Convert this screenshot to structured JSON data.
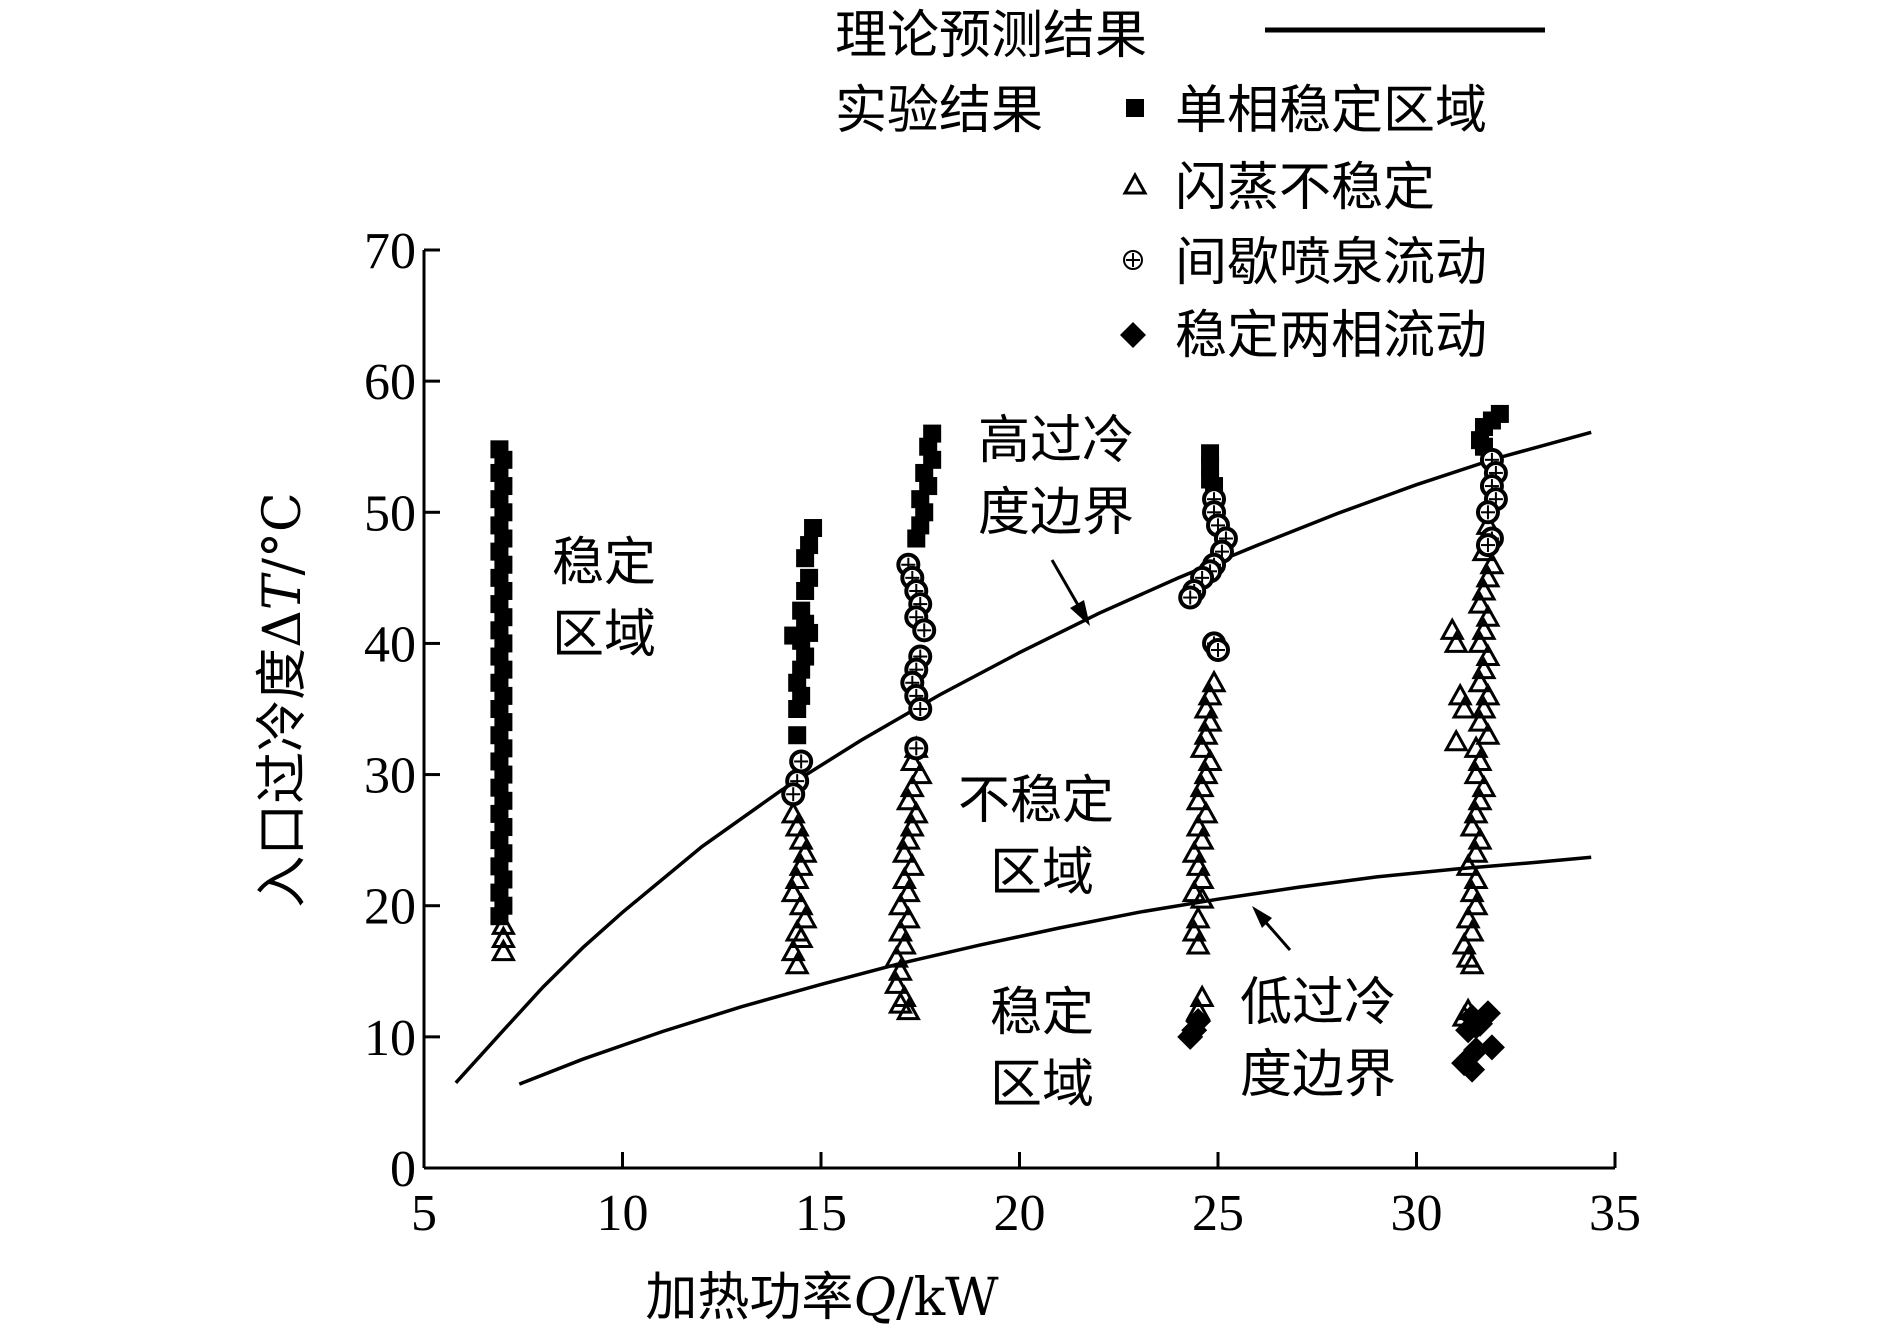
{
  "chart_data": {
    "type": "scatter",
    "xlabel": {
      "prefix": "加热功率",
      "var": "Q",
      "suffix": "/kW"
    },
    "ylabel": {
      "prefix": "入口过冷度Δ",
      "var": "T",
      "suffix": "/°C"
    },
    "xlim": [
      5,
      35
    ],
    "ylim": [
      0,
      70
    ],
    "x_ticks": [
      "5",
      "10",
      "15",
      "20",
      "25",
      "30",
      "35"
    ],
    "y_ticks": [
      "0",
      "10",
      "20",
      "30",
      "40",
      "50",
      "60",
      "70"
    ],
    "grid": false,
    "legend": {
      "placement": "top-right",
      "theory_label": "理论预测结果",
      "experiment_label": "实验结果",
      "items": [
        {
          "marker": "square",
          "label": "单相稳定区域"
        },
        {
          "marker": "triangle",
          "label": "闪蒸不稳定"
        },
        {
          "marker": "circle-plus",
          "label": "间歇喷泉流动"
        },
        {
          "marker": "diamond",
          "label": "稳定两相流动"
        }
      ]
    },
    "annotations": {
      "stable_upper": [
        "稳定",
        "区域"
      ],
      "high_boundary": [
        "高过冷",
        "度边界"
      ],
      "unstable": [
        "不稳定",
        "区域"
      ],
      "stable_lower": [
        "稳定",
        "区域"
      ],
      "low_boundary": [
        "低过冷",
        "度边界"
      ]
    },
    "series": [
      {
        "name": "high-boundary",
        "kind": "line",
        "points": [
          [
            5.8,
            6.5
          ],
          [
            7.0,
            10.5
          ],
          [
            8.0,
            13.8
          ],
          [
            9.0,
            16.8
          ],
          [
            10.0,
            19.5
          ],
          [
            12.0,
            24.5
          ],
          [
            14.0,
            28.8
          ],
          [
            16.0,
            32.6
          ],
          [
            18.0,
            36.1
          ],
          [
            20.0,
            39.3
          ],
          [
            22.0,
            42.3
          ],
          [
            24.0,
            45.0
          ],
          [
            26.0,
            47.5
          ],
          [
            28.0,
            49.9
          ],
          [
            30.0,
            52.1
          ],
          [
            32.0,
            54.1
          ],
          [
            34.4,
            56.1
          ]
        ]
      },
      {
        "name": "low-boundary",
        "kind": "line",
        "points": [
          [
            7.4,
            6.4
          ],
          [
            9.0,
            8.3
          ],
          [
            11.0,
            10.4
          ],
          [
            13.0,
            12.3
          ],
          [
            15.0,
            14.0
          ],
          [
            17.0,
            15.6
          ],
          [
            19.0,
            17.0
          ],
          [
            21.0,
            18.3
          ],
          [
            23.0,
            19.5
          ],
          [
            25.0,
            20.5
          ],
          [
            27.0,
            21.4
          ],
          [
            29.0,
            22.2
          ],
          [
            31.0,
            22.8
          ],
          [
            33.0,
            23.3
          ],
          [
            34.4,
            23.7
          ]
        ]
      },
      {
        "name": "单相稳定区域",
        "marker": "square",
        "points": [
          [
            6.9,
            54.8
          ],
          [
            7.0,
            54
          ],
          [
            6.9,
            53
          ],
          [
            7.0,
            52
          ],
          [
            6.9,
            51
          ],
          [
            7.0,
            50
          ],
          [
            6.9,
            49
          ],
          [
            7.0,
            48
          ],
          [
            6.9,
            47
          ],
          [
            7.0,
            46
          ],
          [
            6.9,
            45
          ],
          [
            7.0,
            44
          ],
          [
            6.9,
            43
          ],
          [
            7.0,
            42
          ],
          [
            6.9,
            41
          ],
          [
            7.0,
            40
          ],
          [
            6.9,
            39
          ],
          [
            7.0,
            38
          ],
          [
            6.9,
            37
          ],
          [
            7.0,
            36
          ],
          [
            6.9,
            35
          ],
          [
            7.0,
            34
          ],
          [
            6.9,
            33
          ],
          [
            7.0,
            32
          ],
          [
            6.9,
            31
          ],
          [
            7.0,
            30
          ],
          [
            6.9,
            29
          ],
          [
            7.0,
            28
          ],
          [
            6.9,
            27
          ],
          [
            7.0,
            26
          ],
          [
            6.9,
            25
          ],
          [
            7.0,
            24
          ],
          [
            6.9,
            23
          ],
          [
            7.0,
            22
          ],
          [
            6.9,
            21
          ],
          [
            7.0,
            20
          ],
          [
            6.9,
            19.2
          ],
          [
            14.8,
            48.8
          ],
          [
            14.7,
            47.5
          ],
          [
            14.6,
            46.5
          ],
          [
            14.7,
            45
          ],
          [
            14.6,
            44
          ],
          [
            14.5,
            42.5
          ],
          [
            14.6,
            41.5
          ],
          [
            14.7,
            40.8
          ],
          [
            14.3,
            40.6
          ],
          [
            14.5,
            40.2
          ],
          [
            14.6,
            39
          ],
          [
            14.5,
            38
          ],
          [
            14.4,
            37
          ],
          [
            14.5,
            36
          ],
          [
            14.4,
            35
          ],
          [
            14.4,
            33
          ],
          [
            17.8,
            56
          ],
          [
            17.7,
            55
          ],
          [
            17.8,
            54
          ],
          [
            17.6,
            53
          ],
          [
            17.7,
            52
          ],
          [
            17.5,
            51
          ],
          [
            17.6,
            50
          ],
          [
            17.5,
            49
          ],
          [
            17.4,
            48
          ],
          [
            24.8,
            54.5
          ],
          [
            24.8,
            53.5
          ],
          [
            24.8,
            52.5
          ],
          [
            24.9,
            52
          ],
          [
            32.1,
            57.5
          ],
          [
            31.9,
            57
          ],
          [
            31.7,
            56.5
          ],
          [
            31.6,
            55.5
          ],
          [
            31.7,
            55
          ]
        ]
      },
      {
        "name": "闪蒸不稳定",
        "marker": "triangle",
        "points": [
          [
            7.0,
            18.5
          ],
          [
            7.0,
            17.5
          ],
          [
            7.0,
            16.5
          ],
          [
            14.3,
            27
          ],
          [
            14.4,
            26
          ],
          [
            14.5,
            25
          ],
          [
            14.6,
            24
          ],
          [
            14.5,
            23
          ],
          [
            14.4,
            22
          ],
          [
            14.3,
            21
          ],
          [
            14.5,
            20
          ],
          [
            14.6,
            19
          ],
          [
            14.4,
            18
          ],
          [
            14.5,
            17.5
          ],
          [
            14.3,
            16.5
          ],
          [
            14.4,
            15.5
          ],
          [
            17.4,
            32
          ],
          [
            17.3,
            31
          ],
          [
            17.5,
            30
          ],
          [
            17.3,
            29
          ],
          [
            17.2,
            28
          ],
          [
            17.4,
            27
          ],
          [
            17.3,
            26
          ],
          [
            17.2,
            25
          ],
          [
            17.1,
            24
          ],
          [
            17.3,
            23
          ],
          [
            17.1,
            22
          ],
          [
            17.2,
            21
          ],
          [
            17.0,
            20
          ],
          [
            17.2,
            19
          ],
          [
            17.0,
            18
          ],
          [
            17.1,
            17
          ],
          [
            16.9,
            16
          ],
          [
            17.0,
            15
          ],
          [
            16.9,
            14
          ],
          [
            17.1,
            13
          ],
          [
            17.0,
            12.5
          ],
          [
            17.2,
            12
          ],
          [
            24.9,
            37
          ],
          [
            24.8,
            36
          ],
          [
            24.7,
            35
          ],
          [
            24.8,
            34
          ],
          [
            24.7,
            33
          ],
          [
            24.6,
            32
          ],
          [
            24.8,
            31
          ],
          [
            24.7,
            30
          ],
          [
            24.6,
            29
          ],
          [
            24.5,
            28
          ],
          [
            24.7,
            27
          ],
          [
            24.5,
            26
          ],
          [
            24.6,
            25
          ],
          [
            24.4,
            24
          ],
          [
            24.5,
            23
          ],
          [
            24.6,
            22
          ],
          [
            24.4,
            21
          ],
          [
            24.6,
            20.5
          ],
          [
            24.5,
            19
          ],
          [
            24.4,
            18
          ],
          [
            24.5,
            17
          ],
          [
            24.6,
            13
          ],
          [
            24.5,
            12
          ],
          [
            31.8,
            49
          ],
          [
            31.7,
            47
          ],
          [
            31.9,
            46
          ],
          [
            31.8,
            45
          ],
          [
            31.7,
            44
          ],
          [
            31.6,
            43
          ],
          [
            31.8,
            42
          ],
          [
            31.7,
            41
          ],
          [
            31.6,
            40
          ],
          [
            31.8,
            39
          ],
          [
            31.7,
            38
          ],
          [
            31.6,
            37
          ],
          [
            31.8,
            36
          ],
          [
            31.7,
            35
          ],
          [
            31.6,
            34
          ],
          [
            31.8,
            33
          ],
          [
            31.5,
            32
          ],
          [
            31.6,
            31
          ],
          [
            31.5,
            30
          ],
          [
            31.7,
            29
          ],
          [
            31.6,
            28
          ],
          [
            31.5,
            27
          ],
          [
            31.4,
            26
          ],
          [
            31.6,
            25
          ],
          [
            31.5,
            24
          ],
          [
            31.3,
            23
          ],
          [
            31.5,
            22
          ],
          [
            31.4,
            21
          ],
          [
            31.5,
            20
          ],
          [
            31.3,
            19
          ],
          [
            31.4,
            18
          ],
          [
            31.2,
            17
          ],
          [
            31.3,
            16
          ],
          [
            31.4,
            15.5
          ],
          [
            30.9,
            41
          ],
          [
            31.0,
            40
          ],
          [
            31.1,
            36
          ],
          [
            31.2,
            35
          ],
          [
            31.0,
            32.5
          ],
          [
            31.3,
            12
          ],
          [
            31.2,
            11.5
          ]
        ]
      },
      {
        "name": "间歇喷泉流动",
        "marker": "circle-plus",
        "points": [
          [
            14.5,
            31
          ],
          [
            14.4,
            29.5
          ],
          [
            14.3,
            28.5
          ],
          [
            17.2,
            46
          ],
          [
            17.3,
            45
          ],
          [
            17.4,
            44
          ],
          [
            17.5,
            43
          ],
          [
            17.4,
            42
          ],
          [
            17.6,
            41
          ],
          [
            17.5,
            39
          ],
          [
            17.4,
            38
          ],
          [
            17.3,
            37
          ],
          [
            17.4,
            36
          ],
          [
            17.5,
            35
          ],
          [
            17.4,
            32
          ],
          [
            24.9,
            51
          ],
          [
            24.9,
            50
          ],
          [
            25.0,
            49
          ],
          [
            25.2,
            48
          ],
          [
            25.1,
            47
          ],
          [
            24.9,
            46
          ],
          [
            24.8,
            45.5
          ],
          [
            24.6,
            45
          ],
          [
            24.4,
            44
          ],
          [
            24.3,
            43.5
          ],
          [
            24.9,
            40
          ],
          [
            25.0,
            39.5
          ],
          [
            31.9,
            54
          ],
          [
            32.0,
            53
          ],
          [
            31.9,
            52
          ],
          [
            32.0,
            51
          ],
          [
            31.8,
            50
          ],
          [
            31.9,
            48
          ],
          [
            31.8,
            47.5
          ]
        ]
      },
      {
        "name": "稳定两相流动",
        "marker": "diamond",
        "points": [
          [
            24.5,
            11.2
          ],
          [
            24.4,
            10.5
          ],
          [
            24.3,
            10
          ],
          [
            31.4,
            11.5
          ],
          [
            31.6,
            11
          ],
          [
            31.8,
            11.8
          ],
          [
            31.5,
            10.8
          ],
          [
            31.3,
            10.5
          ],
          [
            31.5,
            9
          ],
          [
            31.9,
            9.2
          ],
          [
            31.2,
            8
          ],
          [
            31.4,
            7.5
          ]
        ]
      }
    ]
  }
}
